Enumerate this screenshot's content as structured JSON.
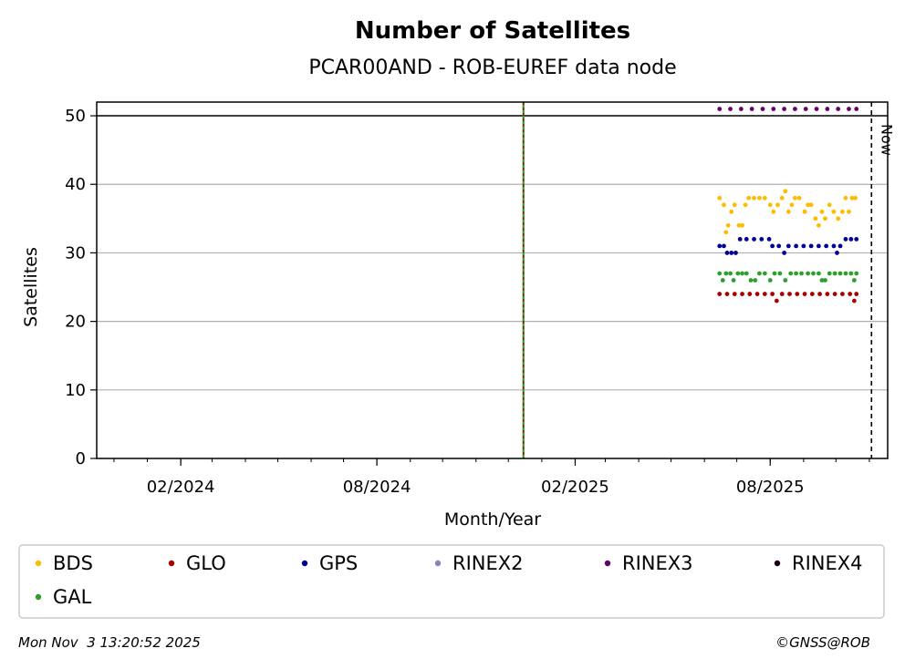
{
  "chart_data": {
    "type": "scatter",
    "title": "Number of Satellites",
    "subtitle": "PCAR00AND - ROB-EUREF data node",
    "xlabel": "Month/Year",
    "ylabel": "Satellites",
    "xlim": [
      "2023-11-15",
      "2025-11-18"
    ],
    "ylim": [
      0,
      52
    ],
    "xticks": [
      {
        "date": "2024-02-01",
        "label": "02/2024"
      },
      {
        "date": "2024-08-01",
        "label": "08/2024"
      },
      {
        "date": "2025-02-01",
        "label": "02/2025"
      },
      {
        "date": "2025-08-01",
        "label": "08/2025"
      }
    ],
    "yticks": [
      0,
      10,
      20,
      30,
      40,
      50
    ],
    "grid": "horizontal",
    "reference_lines": [
      {
        "type": "horizontal",
        "y": 50,
        "color": "#000000"
      },
      {
        "type": "vertical",
        "x": "2024-12-15",
        "colors": [
          "#2ca02c",
          "#aa0000"
        ],
        "style": "dashed"
      },
      {
        "type": "vertical",
        "x": "2025-11-03",
        "label": "Now",
        "color": "#000000",
        "style": "dashed"
      }
    ],
    "series": [
      {
        "name": "BDS",
        "color": "#ffbb00",
        "points": [
          [
            "2025-06-15",
            38
          ],
          [
            "2025-06-19",
            37
          ],
          [
            "2025-06-21",
            33
          ],
          [
            "2025-06-23",
            34
          ],
          [
            "2025-06-26",
            36
          ],
          [
            "2025-06-29",
            37
          ],
          [
            "2025-07-03",
            34
          ],
          [
            "2025-07-06",
            34
          ],
          [
            "2025-07-09",
            37
          ],
          [
            "2025-07-12",
            38
          ],
          [
            "2025-07-17",
            38
          ],
          [
            "2025-07-22",
            38
          ],
          [
            "2025-07-27",
            38
          ],
          [
            "2025-08-01",
            37
          ],
          [
            "2025-08-04",
            36
          ],
          [
            "2025-08-08",
            37
          ],
          [
            "2025-08-12",
            38
          ],
          [
            "2025-08-15",
            39
          ],
          [
            "2025-08-18",
            36
          ],
          [
            "2025-08-21",
            37
          ],
          [
            "2025-08-24",
            38
          ],
          [
            "2025-08-28",
            38
          ],
          [
            "2025-09-02",
            36
          ],
          [
            "2025-09-05",
            37
          ],
          [
            "2025-09-08",
            37
          ],
          [
            "2025-09-12",
            35
          ],
          [
            "2025-09-15",
            34
          ],
          [
            "2025-09-18",
            36
          ],
          [
            "2025-09-21",
            35
          ],
          [
            "2025-09-25",
            37
          ],
          [
            "2025-09-29",
            36
          ],
          [
            "2025-10-03",
            35
          ],
          [
            "2025-10-07",
            36
          ],
          [
            "2025-10-10",
            38
          ],
          [
            "2025-10-13",
            36
          ],
          [
            "2025-10-16",
            38
          ],
          [
            "2025-10-19",
            38
          ]
        ]
      },
      {
        "name": "GLO",
        "color": "#aa0000",
        "points": [
          [
            "2025-06-15",
            24
          ],
          [
            "2025-06-22",
            24
          ],
          [
            "2025-06-29",
            24
          ],
          [
            "2025-07-06",
            24
          ],
          [
            "2025-07-13",
            24
          ],
          [
            "2025-07-20",
            24
          ],
          [
            "2025-07-27",
            24
          ],
          [
            "2025-08-03",
            24
          ],
          [
            "2025-08-07",
            23
          ],
          [
            "2025-08-12",
            24
          ],
          [
            "2025-08-19",
            24
          ],
          [
            "2025-08-26",
            24
          ],
          [
            "2025-09-02",
            24
          ],
          [
            "2025-09-09",
            24
          ],
          [
            "2025-09-16",
            24
          ],
          [
            "2025-09-23",
            24
          ],
          [
            "2025-09-30",
            24
          ],
          [
            "2025-10-07",
            24
          ],
          [
            "2025-10-14",
            24
          ],
          [
            "2025-10-18",
            23
          ],
          [
            "2025-10-20",
            24
          ]
        ]
      },
      {
        "name": "GPS",
        "color": "#000099",
        "points": [
          [
            "2025-06-15",
            31
          ],
          [
            "2025-06-19",
            31
          ],
          [
            "2025-06-22",
            30
          ],
          [
            "2025-06-26",
            30
          ],
          [
            "2025-06-30",
            30
          ],
          [
            "2025-07-04",
            32
          ],
          [
            "2025-07-10",
            32
          ],
          [
            "2025-07-17",
            32
          ],
          [
            "2025-07-24",
            32
          ],
          [
            "2025-07-31",
            32
          ],
          [
            "2025-08-03",
            31
          ],
          [
            "2025-08-09",
            31
          ],
          [
            "2025-08-14",
            30
          ],
          [
            "2025-08-18",
            31
          ],
          [
            "2025-08-25",
            31
          ],
          [
            "2025-09-01",
            31
          ],
          [
            "2025-09-08",
            31
          ],
          [
            "2025-09-15",
            31
          ],
          [
            "2025-09-22",
            31
          ],
          [
            "2025-09-29",
            31
          ],
          [
            "2025-10-02",
            30
          ],
          [
            "2025-10-05",
            31
          ],
          [
            "2025-10-10",
            32
          ],
          [
            "2025-10-15",
            32
          ],
          [
            "2025-10-20",
            32
          ]
        ]
      },
      {
        "name": "RINEX2",
        "color": "#8a7fc0",
        "points": []
      },
      {
        "name": "RINEX3",
        "color": "#660066",
        "points": [
          [
            "2025-06-15",
            51
          ],
          [
            "2025-06-25",
            51
          ],
          [
            "2025-07-05",
            51
          ],
          [
            "2025-07-15",
            51
          ],
          [
            "2025-07-25",
            51
          ],
          [
            "2025-08-04",
            51
          ],
          [
            "2025-08-14",
            51
          ],
          [
            "2025-08-24",
            51
          ],
          [
            "2025-09-03",
            51
          ],
          [
            "2025-09-13",
            51
          ],
          [
            "2025-09-23",
            51
          ],
          [
            "2025-10-03",
            51
          ],
          [
            "2025-10-13",
            51
          ],
          [
            "2025-10-20",
            51
          ]
        ]
      },
      {
        "name": "RINEX4",
        "color": "#1a001a",
        "points": []
      },
      {
        "name": "GAL",
        "color": "#2ca02c",
        "points": [
          [
            "2025-06-15",
            27
          ],
          [
            "2025-06-18",
            26
          ],
          [
            "2025-06-21",
            27
          ],
          [
            "2025-06-25",
            27
          ],
          [
            "2025-06-28",
            26
          ],
          [
            "2025-07-02",
            27
          ],
          [
            "2025-07-06",
            27
          ],
          [
            "2025-07-10",
            27
          ],
          [
            "2025-07-14",
            26
          ],
          [
            "2025-07-18",
            26
          ],
          [
            "2025-07-22",
            27
          ],
          [
            "2025-07-27",
            27
          ],
          [
            "2025-08-01",
            26
          ],
          [
            "2025-08-05",
            27
          ],
          [
            "2025-08-10",
            27
          ],
          [
            "2025-08-15",
            26
          ],
          [
            "2025-08-20",
            27
          ],
          [
            "2025-08-25",
            27
          ],
          [
            "2025-08-30",
            27
          ],
          [
            "2025-09-05",
            27
          ],
          [
            "2025-09-10",
            27
          ],
          [
            "2025-09-15",
            27
          ],
          [
            "2025-09-18",
            26
          ],
          [
            "2025-09-21",
            26
          ],
          [
            "2025-09-25",
            27
          ],
          [
            "2025-09-30",
            27
          ],
          [
            "2025-10-05",
            27
          ],
          [
            "2025-10-10",
            27
          ],
          [
            "2025-10-15",
            27
          ],
          [
            "2025-10-18",
            26
          ],
          [
            "2025-10-20",
            27
          ]
        ]
      }
    ],
    "legend": {
      "placement": "below",
      "columns": 6
    }
  },
  "footer": {
    "timestamp": "Mon Nov  3 13:20:52 2025",
    "credit": "©GNSS@ROB"
  }
}
